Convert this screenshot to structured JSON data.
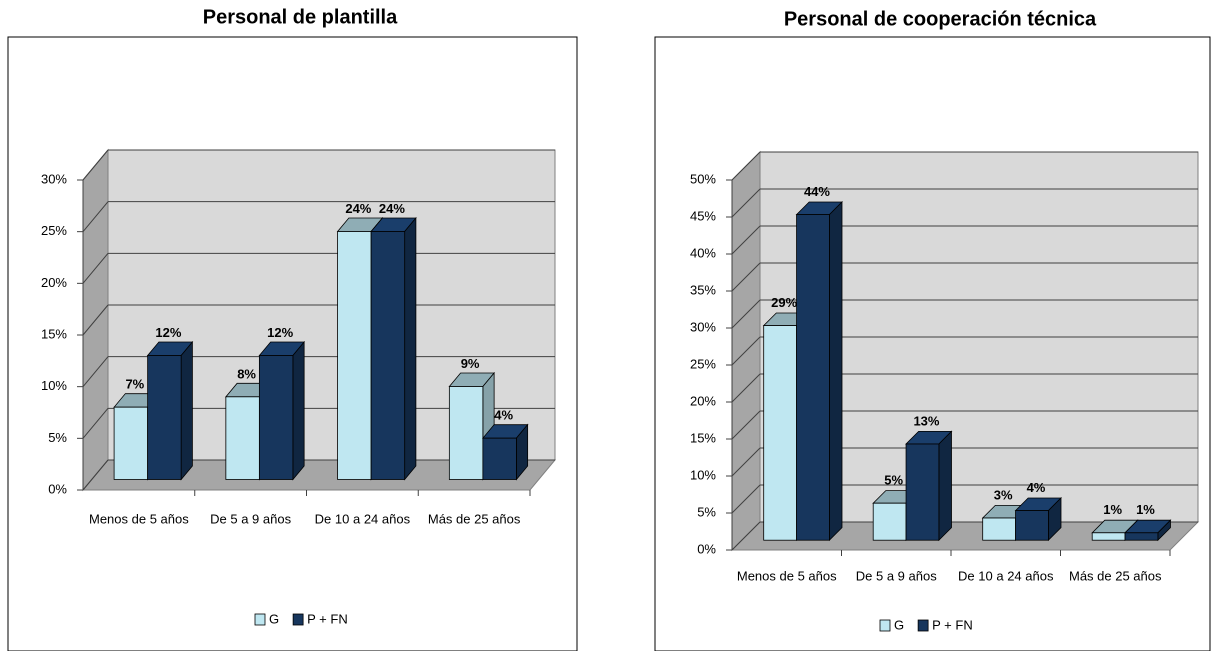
{
  "chart_data": [
    {
      "type": "bar",
      "title": "Personal de plantilla",
      "categories": [
        "Menos de 5 años",
        "De 5 a 9 años",
        "De 10 a 24 años",
        "Más de 25 años"
      ],
      "series": [
        {
          "name": "G",
          "color": "#bfe7f1",
          "values": [
            7,
            8,
            24,
            9
          ],
          "value_labels": [
            "7%",
            "8%",
            "24%",
            "9%"
          ]
        },
        {
          "name": "P + FN",
          "color": "#17365d",
          "values": [
            12,
            12,
            24,
            4
          ],
          "value_labels": [
            "12%",
            "12%",
            "24%",
            "4%"
          ]
        }
      ],
      "ylim": [
        0,
        30
      ],
      "yticks": [
        {
          "value": 0,
          "label": "0%"
        },
        {
          "value": 5,
          "label": "5%"
        },
        {
          "value": 10,
          "label": "10%"
        },
        {
          "value": 15,
          "label": "15%"
        },
        {
          "value": 20,
          "label": "20%"
        },
        {
          "value": 25,
          "label": "25%"
        },
        {
          "value": 30,
          "label": "30%"
        }
      ],
      "grid": true
    },
    {
      "type": "bar",
      "title": "Personal de cooperación técnica",
      "categories": [
        "Menos de 5 años",
        "De 5 a 9 años",
        "De 10 a 24 años",
        "Más de 25 años"
      ],
      "series": [
        {
          "name": "G",
          "color": "#bfe7f1",
          "values": [
            29,
            5,
            3,
            1
          ],
          "value_labels": [
            "29%",
            "5%",
            "3%",
            "1%"
          ]
        },
        {
          "name": "P + FN",
          "color": "#17365d",
          "values": [
            44,
            13,
            4,
            1
          ],
          "value_labels": [
            "44%",
            "13%",
            "4%",
            "1%"
          ]
        }
      ],
      "ylim": [
        0,
        50
      ],
      "yticks": [
        {
          "value": 0,
          "label": "0%"
        },
        {
          "value": 5,
          "label": "5%"
        },
        {
          "value": 10,
          "label": "10%"
        },
        {
          "value": 15,
          "label": "15%"
        },
        {
          "value": 20,
          "label": "20%"
        },
        {
          "value": 25,
          "label": "25%"
        },
        {
          "value": 30,
          "label": "30%"
        },
        {
          "value": 35,
          "label": "35%"
        },
        {
          "value": 40,
          "label": "40%"
        },
        {
          "value": 45,
          "label": "45%"
        },
        {
          "value": 50,
          "label": "50%"
        }
      ],
      "grid": true
    }
  ]
}
